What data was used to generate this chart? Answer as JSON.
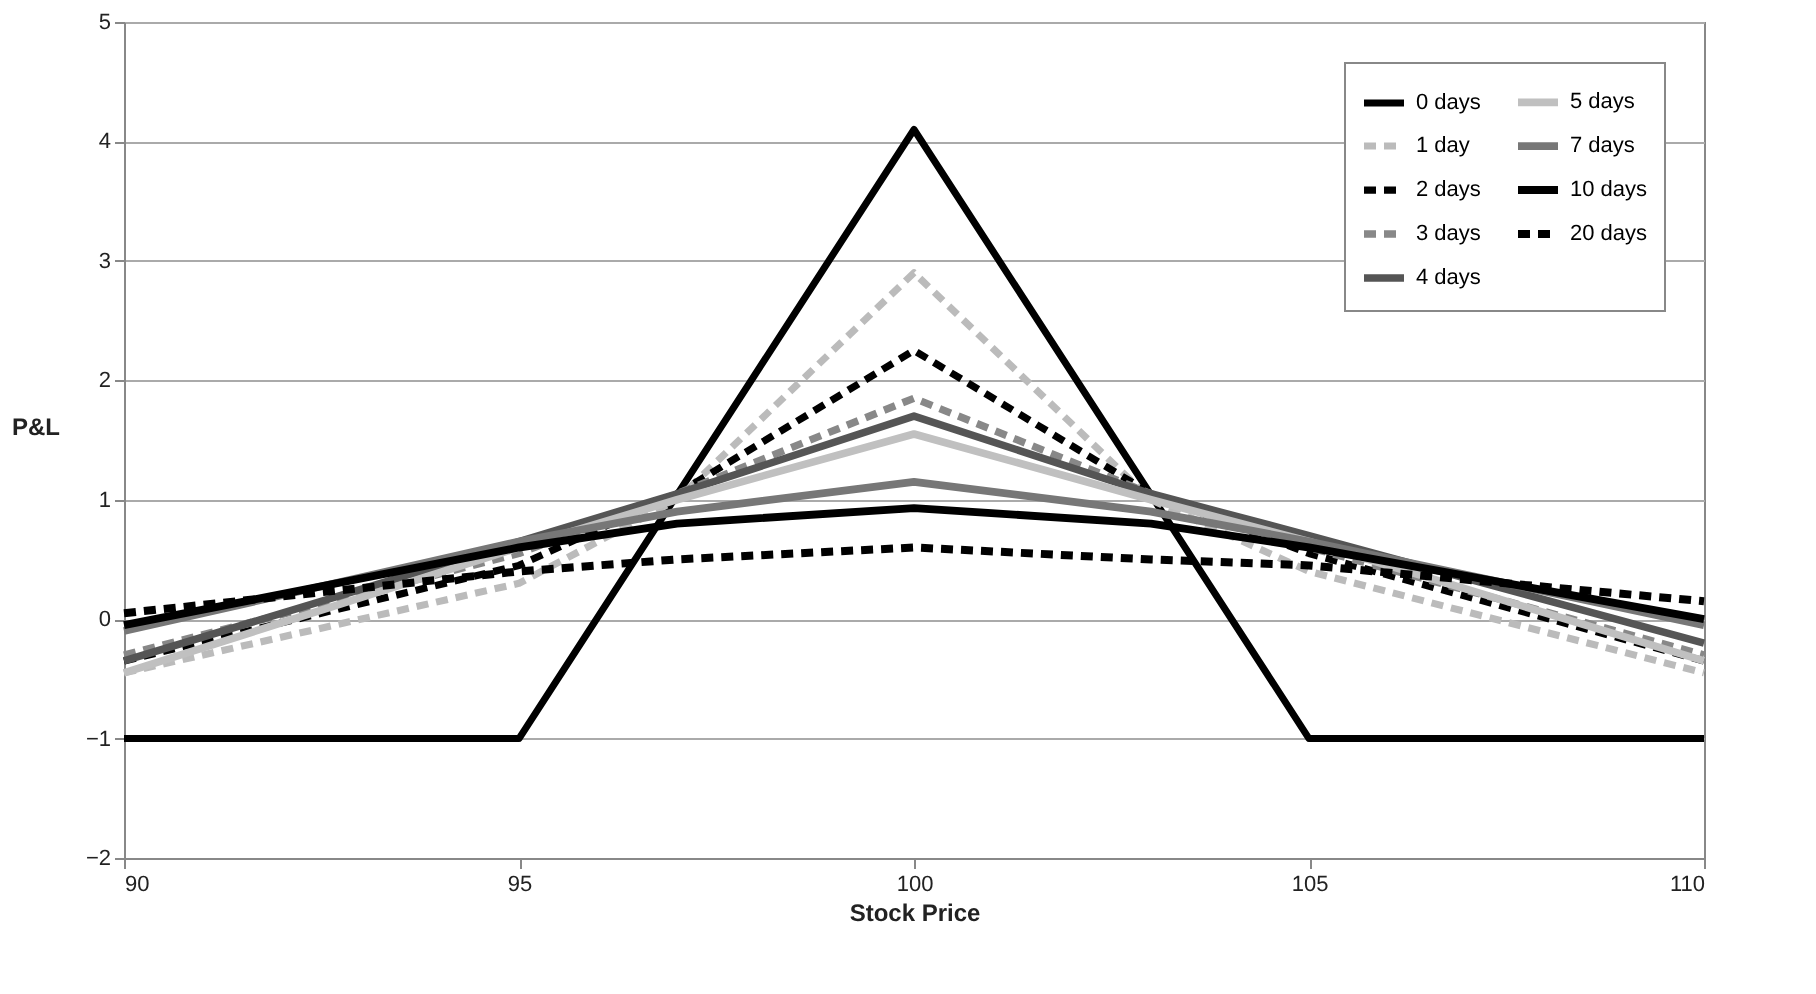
{
  "chart_data": {
    "type": "line",
    "xlabel": "Stock Price",
    "ylabel": "P&L",
    "x": [
      90,
      95,
      97,
      100,
      103,
      105,
      110
    ],
    "xlim": [
      90,
      110
    ],
    "xticks": [
      90,
      95,
      100,
      105,
      110
    ],
    "ylim": [
      -2,
      5
    ],
    "yticks": [
      -2,
      -1,
      0,
      1,
      2,
      3,
      4,
      5
    ],
    "grid": "y",
    "legend": "top right",
    "marker": "none",
    "series": [
      {
        "name": "0 days",
        "color": "#000000",
        "line_style": "solid",
        "x": [
          90,
          95,
          100,
          105,
          110
        ],
        "values": [
          -1,
          -1,
          4.1,
          -1,
          -1
        ]
      },
      {
        "name": "1 day",
        "color": "#bbbbbb",
        "line_style": "dashed",
        "values": [
          -0.45,
          0.3,
          1.0,
          2.9,
          1.0,
          0.4,
          -0.45
        ]
      },
      {
        "name": "2 days",
        "color": "#000000",
        "line_style": "dashed",
        "values": [
          -0.35,
          0.45,
          1.05,
          2.25,
          1.05,
          0.55,
          -0.35
        ]
      },
      {
        "name": "3 days",
        "color": "#888888",
        "line_style": "dashed",
        "values": [
          -0.3,
          0.55,
          1.05,
          1.85,
          1.05,
          0.6,
          -0.3
        ]
      },
      {
        "name": "4 days",
        "color": "#555555",
        "line_style": "solid",
        "values": [
          -0.35,
          0.65,
          1.05,
          1.7,
          1.05,
          0.7,
          -0.2
        ]
      },
      {
        "name": "5 days",
        "color": "#c0c0c0",
        "line_style": "solid",
        "values": [
          -0.45,
          0.6,
          1.0,
          1.55,
          1.0,
          0.65,
          -0.35
        ]
      },
      {
        "name": "7 days",
        "color": "#777777",
        "line_style": "solid",
        "values": [
          -0.1,
          0.65,
          0.9,
          1.15,
          0.9,
          0.65,
          -0.05
        ]
      },
      {
        "name": "10 days",
        "color": "#000000",
        "line_style": "solid",
        "values": [
          -0.05,
          0.6,
          0.8,
          0.93,
          0.8,
          0.6,
          0.0
        ]
      },
      {
        "name": "20 days",
        "color": "#000000",
        "line_style": "dashed",
        "values": [
          0.05,
          0.4,
          0.5,
          0.6,
          0.5,
          0.45,
          0.15
        ]
      }
    ]
  }
}
